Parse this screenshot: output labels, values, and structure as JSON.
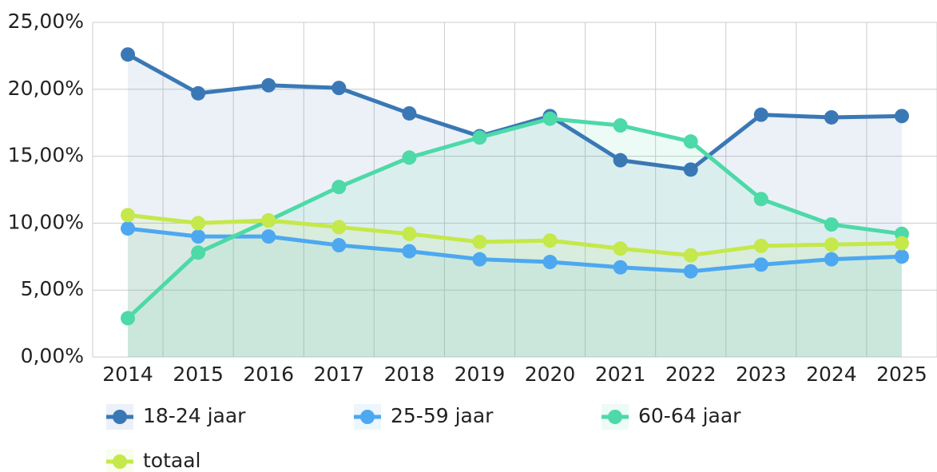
{
  "chart_data": {
    "type": "line",
    "categories": [
      "2014",
      "2015",
      "2016",
      "2017",
      "2018",
      "2019",
      "2020",
      "2021",
      "2022",
      "2023",
      "2024",
      "2025"
    ],
    "series": [
      {
        "name": "18-24 jaar",
        "color": "#3a78b5",
        "values": [
          22.6,
          19.7,
          20.3,
          20.1,
          18.2,
          16.5,
          18.0,
          14.7,
          14.0,
          18.1,
          17.9,
          18.0
        ]
      },
      {
        "name": "25-59 jaar",
        "color": "#4da8f0",
        "values": [
          9.6,
          9.0,
          9.0,
          8.35,
          7.9,
          7.3,
          7.1,
          6.7,
          6.4,
          6.9,
          7.3,
          7.5
        ]
      },
      {
        "name": "60-64 jaar",
        "color": "#4dd9a8",
        "values": [
          2.9,
          7.8,
          10.2,
          12.7,
          14.9,
          16.4,
          17.8,
          17.3,
          16.1,
          11.8,
          9.9,
          9.2
        ]
      },
      {
        "name": "totaal",
        "color": "#c5e84a",
        "values": [
          10.6,
          10.0,
          10.2,
          9.7,
          9.2,
          8.6,
          8.7,
          8.1,
          7.6,
          8.3,
          8.4,
          8.5
        ]
      }
    ],
    "ylim": [
      0,
      25
    ],
    "yticks": [
      {
        "value": 0,
        "label": "0,00%"
      },
      {
        "value": 5,
        "label": "5,00%"
      },
      {
        "value": 10,
        "label": "10,00%"
      },
      {
        "value": 15,
        "label": "15,00%"
      },
      {
        "value": 20,
        "label": "20,00%"
      },
      {
        "value": 25,
        "label": "25,00%"
      }
    ],
    "grid": true
  }
}
